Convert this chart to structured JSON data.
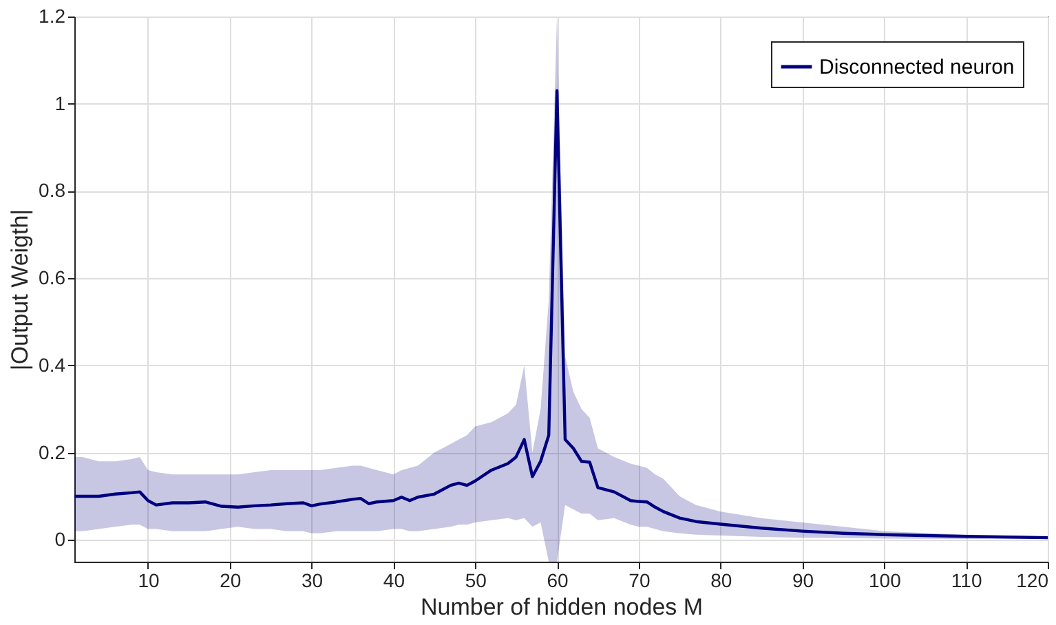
{
  "chart_data": {
    "type": "line",
    "xlabel": "Number of hidden nodes M",
    "ylabel": "|Output Weigth|",
    "xlim": [
      1,
      120
    ],
    "ylim": [
      -0.05,
      1.2
    ],
    "xticks": [
      10,
      20,
      30,
      40,
      50,
      60,
      70,
      80,
      90,
      100,
      110,
      120
    ],
    "yticks": [
      0,
      0.2,
      0.4,
      0.6,
      0.8,
      1,
      1.2
    ],
    "grid": true,
    "legend": "top right",
    "line_style": "solid",
    "marker": "none",
    "series": [
      {
        "name": "Disconnected neuron",
        "color": "#000080",
        "x": [
          1,
          2,
          4,
          6,
          8,
          9,
          10,
          11,
          13,
          15,
          17,
          19,
          21,
          23,
          25,
          27,
          29,
          30,
          31,
          33,
          35,
          36,
          37,
          38,
          40,
          41,
          42,
          43,
          45,
          47,
          48,
          49,
          50,
          52,
          54,
          55,
          56,
          57,
          58,
          59,
          60,
          61,
          62,
          63,
          64,
          65,
          67,
          69,
          70,
          71,
          72,
          73,
          75,
          77,
          80,
          85,
          90,
          95,
          100,
          110,
          120
        ],
        "values": [
          0.1,
          0.1,
          0.1,
          0.105,
          0.108,
          0.11,
          0.09,
          0.08,
          0.085,
          0.085,
          0.087,
          0.077,
          0.075,
          0.078,
          0.08,
          0.083,
          0.085,
          0.078,
          0.082,
          0.087,
          0.093,
          0.095,
          0.083,
          0.087,
          0.09,
          0.098,
          0.09,
          0.098,
          0.105,
          0.125,
          0.13,
          0.125,
          0.135,
          0.16,
          0.175,
          0.19,
          0.23,
          0.145,
          0.18,
          0.24,
          1.03,
          0.23,
          0.21,
          0.18,
          0.178,
          0.12,
          0.11,
          0.09,
          0.088,
          0.087,
          0.075,
          0.065,
          0.05,
          0.042,
          0.036,
          0.027,
          0.02,
          0.015,
          0.012,
          0.008,
          0.005
        ],
        "upper": [
          0.19,
          0.19,
          0.18,
          0.18,
          0.185,
          0.19,
          0.16,
          0.155,
          0.15,
          0.15,
          0.15,
          0.15,
          0.15,
          0.155,
          0.16,
          0.16,
          0.16,
          0.16,
          0.16,
          0.165,
          0.17,
          0.17,
          0.165,
          0.16,
          0.15,
          0.16,
          0.165,
          0.17,
          0.2,
          0.22,
          0.23,
          0.24,
          0.26,
          0.27,
          0.29,
          0.31,
          0.4,
          0.2,
          0.3,
          0.55,
          1.2,
          0.42,
          0.34,
          0.3,
          0.28,
          0.21,
          0.19,
          0.175,
          0.17,
          0.165,
          0.15,
          0.14,
          0.1,
          0.08,
          0.065,
          0.05,
          0.04,
          0.03,
          0.02,
          0.012,
          0.008
        ],
        "lower": [
          0.02,
          0.02,
          0.025,
          0.03,
          0.035,
          0.035,
          0.025,
          0.025,
          0.02,
          0.02,
          0.02,
          0.025,
          0.03,
          0.025,
          0.025,
          0.02,
          0.02,
          0.015,
          0.015,
          0.02,
          0.02,
          0.02,
          0.02,
          0.02,
          0.025,
          0.025,
          0.02,
          0.02,
          0.025,
          0.03,
          0.035,
          0.035,
          0.04,
          0.045,
          0.05,
          0.045,
          0.05,
          0.03,
          0.04,
          -0.05,
          -0.05,
          0.08,
          0.07,
          0.06,
          0.06,
          0.045,
          0.05,
          0.035,
          0.03,
          0.03,
          0.025,
          0.02,
          0.015,
          0.012,
          0.01,
          0.007,
          0.005,
          0.004,
          0.003,
          0.002,
          0.002
        ]
      }
    ]
  }
}
